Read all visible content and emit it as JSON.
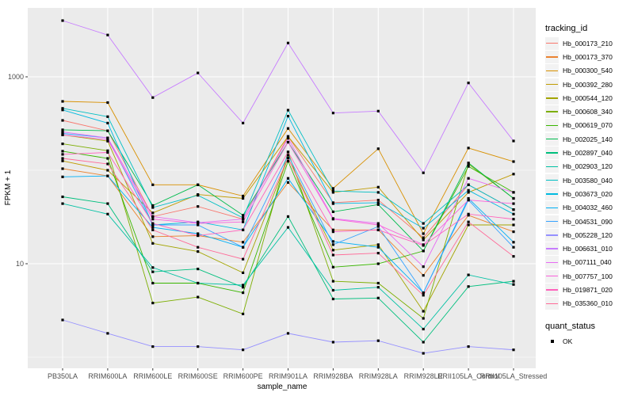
{
  "figure": {
    "background": "#FFFFFF",
    "panel_background": "#EBEBEB",
    "gridline_color": "#FFFFFF",
    "tick_color": "#333333",
    "tick_label_color": "#4D4D4D",
    "point_color": "#000000"
  },
  "axes": {
    "x": {
      "title": "sample_name"
    },
    "y": {
      "title": "FPKM + 1",
      "scale": "log10",
      "major_breaks": [
        10,
        1000
      ],
      "minor_breaks": [
        1,
        100
      ]
    }
  },
  "legends": {
    "tracking": {
      "title": "tracking_id"
    },
    "quant": {
      "title": "quant_status",
      "items": [
        {
          "label": "OK",
          "symbol": "black-square"
        }
      ]
    }
  },
  "chart_data": {
    "type": "line",
    "title": "",
    "xlabel": "sample_name",
    "ylabel": "FPKM + 1",
    "y_scale": "log10",
    "ylim": [
      0.76,
      5450
    ],
    "y_major_breaks": [
      10,
      1000
    ],
    "y_minor_breaks": [
      1,
      100
    ],
    "grid": "on",
    "legend_position": "right",
    "point_shape": "filled-black-square",
    "categories": [
      "PB350LA",
      "RRIM600LA",
      "RRIM600LE",
      "RRIM600SE",
      "RRIM600PE",
      "RRIM901LA",
      "RRIM928BA",
      "RRIM928LA",
      "RRIM928LE",
      "RRII105LA_Control",
      "RRII105LA_Stressed"
    ],
    "series": [
      {
        "name": "Hb_000173_210",
        "color": "#F8766D",
        "values": [
          342,
          265,
          32,
          41,
          30,
          230,
          45,
          48,
          19,
          70,
          38
        ]
      },
      {
        "name": "Hb_000173_370",
        "color": "#EA8331",
        "values": [
          104,
          87,
          19.5,
          20,
          17,
          74,
          23,
          23,
          7.5,
          33,
          22
        ]
      },
      {
        "name": "Hb_000300_540",
        "color": "#D89000",
        "values": [
          546,
          530,
          70,
          70,
          53,
          280,
          64,
          170,
          21,
          173,
          124
        ]
      },
      {
        "name": "Hb_000392_280",
        "color": "#C09B00",
        "values": [
          126,
          100,
          35,
          55,
          50,
          230,
          58,
          66,
          18,
          58,
          91
        ]
      },
      {
        "name": "Hb_000544_120",
        "color": "#A3A500",
        "values": [
          239,
          205,
          16.5,
          13.5,
          8,
          135,
          14,
          16,
          3.1,
          26,
          26
        ]
      },
      {
        "name": "Hb_000608_340",
        "color": "#7CAE00",
        "values": [
          192,
          162,
          3.8,
          4.4,
          2.9,
          157,
          6.5,
          6.2,
          2.6,
          117,
          50
        ]
      },
      {
        "name": "Hb_000619_070",
        "color": "#39B600",
        "values": [
          160,
          134,
          6.2,
          6.2,
          4.9,
          125,
          9.2,
          10,
          13.7,
          110,
          58
        ]
      },
      {
        "name": "Hb_002025_140",
        "color": "#00BB4E",
        "values": [
          271,
          265,
          42,
          70,
          33,
          200,
          36,
          43,
          13.7,
          120,
          50
        ]
      },
      {
        "name": "Hb_002897_040",
        "color": "#00BF7D",
        "values": [
          52,
          44,
          8.2,
          8.8,
          5.6,
          32,
          4.2,
          4.3,
          1.45,
          5.7,
          6.5
        ]
      },
      {
        "name": "Hb_002903_120",
        "color": "#00C1A3",
        "values": [
          44,
          34,
          9.1,
          6.2,
          5.9,
          24.5,
          5.2,
          5.6,
          2.0,
          7.6,
          6.0
        ]
      },
      {
        "name": "Hb_003580_040",
        "color": "#00BFC4",
        "values": [
          460,
          375,
          40,
          54,
          31,
          440,
          60,
          58,
          27,
          70,
          38
        ]
      },
      {
        "name": "Hb_003673_020",
        "color": "#00BAE0",
        "values": [
          442,
          320,
          26,
          28,
          23,
          380,
          44,
          45,
          24,
          61,
          34
        ]
      },
      {
        "name": "Hb_004032_460",
        "color": "#00B0F6",
        "values": [
          85,
          87,
          24.5,
          21,
          15,
          82,
          17.3,
          15,
          4.9,
          50,
          17
        ]
      },
      {
        "name": "Hb_004531_090",
        "color": "#35A2FF",
        "values": [
          248,
          222,
          26,
          26,
          15,
          145,
          16,
          25,
          4.9,
          48,
          15
        ]
      },
      {
        "name": "Hb_005228_120",
        "color": "#9590FF",
        "values": [
          2.5,
          1.8,
          1.3,
          1.3,
          1.2,
          1.8,
          1.45,
          1.5,
          1.1,
          1.3,
          1.2
        ]
      },
      {
        "name": "Hb_006631_010",
        "color": "#C77CFF",
        "values": [
          4000,
          2800,
          600,
          1100,
          320,
          2300,
          410,
          430,
          94,
          860,
          206
        ]
      },
      {
        "name": "Hb_007111_040",
        "color": "#E76BF3",
        "values": [
          257,
          222,
          32,
          27.5,
          30,
          220,
          30.5,
          27,
          9.3,
          82,
          58
        ]
      },
      {
        "name": "Hb_007757_100",
        "color": "#FA62DB",
        "values": [
          239,
          213,
          30,
          27,
          28,
          200,
          30,
          26,
          16,
          48,
          44
        ]
      },
      {
        "name": "Hb_019871_020",
        "color": "#FF62BC",
        "values": [
          148,
          155,
          27,
          20,
          23,
          157,
          22,
          23,
          15.7,
          34,
          30
        ]
      },
      {
        "name": "Hb_035360_010",
        "color": "#FF6A98",
        "values": [
          134,
          117,
          23,
          15,
          11.2,
          135,
          12.4,
          13,
          4.6,
          28,
          12
        ]
      }
    ]
  }
}
